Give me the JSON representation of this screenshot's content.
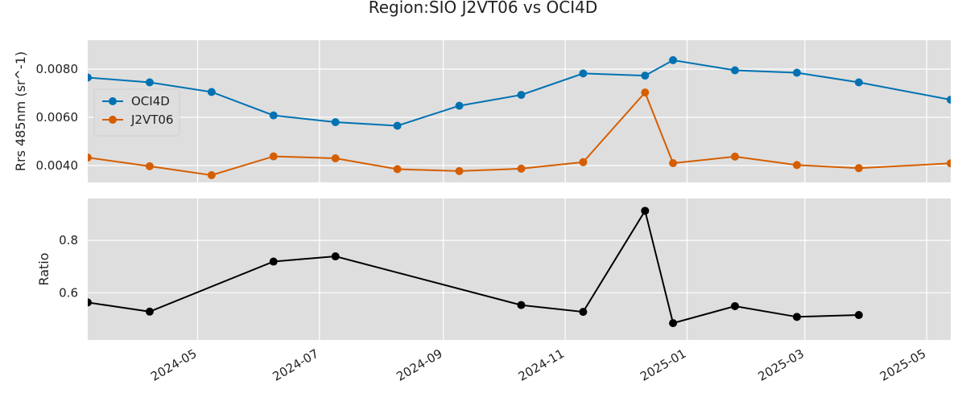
{
  "chart_data": {
    "type": "line",
    "title": "Region:SIO J2VT06 vs OCI4D",
    "x_axis": {
      "type": "date",
      "range": [
        "2024-03-07",
        "2025-05-13"
      ],
      "tick_labels": [
        "2024-05",
        "2024-07",
        "2024-09",
        "2024-11",
        "2025-01",
        "2025-03",
        "2025-05"
      ],
      "tick_dates": [
        "2024-05-01",
        "2024-07-01",
        "2024-09-01",
        "2024-11-01",
        "2025-01-01",
        "2025-03-01",
        "2025-05-01"
      ]
    },
    "panels": [
      {
        "ylabel": "Rrs 485nm (sr^-1)",
        "ylim": [
          0.0033,
          0.0092
        ],
        "yticks": [
          0.004,
          0.006,
          0.008
        ],
        "ytick_labels": [
          "0.0040",
          "0.0060",
          "0.0080"
        ],
        "grid": true,
        "legend": "upper-left",
        "series": [
          {
            "name": "OCI4D",
            "color": "#0072b2",
            "x": [
              "2024-03-07",
              "2024-04-07",
              "2024-05-08",
              "2024-06-08",
              "2024-07-09",
              "2024-08-09",
              "2024-09-09",
              "2024-10-10",
              "2024-11-10",
              "2024-12-11",
              "2024-12-25",
              "2025-01-25",
              "2025-02-25",
              "2025-03-28",
              "2025-05-13"
            ],
            "values": [
              0.00765,
              0.00745,
              0.00705,
              0.00608,
              0.0058,
              0.00565,
              0.00648,
              0.00693,
              0.00782,
              0.00773,
              0.00837,
              0.00795,
              0.00785,
              0.00745,
              0.00673
            ]
          },
          {
            "name": "J2VT06",
            "color": "#d55e00",
            "x": [
              "2024-03-07",
              "2024-04-07",
              "2024-05-08",
              "2024-06-08",
              "2024-07-09",
              "2024-08-09",
              "2024-09-09",
              "2024-10-10",
              "2024-11-10",
              "2024-12-11",
              "2024-12-25",
              "2025-01-25",
              "2025-02-25",
              "2025-03-28",
              "2025-05-13"
            ],
            "values": [
              0.00433,
              0.00397,
              0.0036,
              0.00438,
              0.0043,
              0.00385,
              0.00377,
              0.00387,
              0.00414,
              0.00703,
              0.0041,
              0.00437,
              0.00402,
              0.00389,
              0.00409
            ]
          }
        ]
      },
      {
        "ylabel": "Ratio",
        "ylim": [
          0.42,
          0.96
        ],
        "yticks": [
          0.6,
          0.8
        ],
        "ytick_labels": [
          "0.6",
          "0.8"
        ],
        "grid": true,
        "series": [
          {
            "color": "#000000",
            "x": [
              "2024-03-07",
              "2024-04-07",
              "2024-06-08",
              "2024-07-09",
              "2024-10-10",
              "2024-11-10",
              "2024-12-11",
              "2024-12-25",
              "2025-01-25",
              "2025-02-25",
              "2025-03-28"
            ],
            "values": [
              0.563,
              0.528,
              0.719,
              0.739,
              0.553,
              0.527,
              0.913,
              0.484,
              0.549,
              0.508,
              0.515
            ]
          }
        ]
      }
    ]
  }
}
